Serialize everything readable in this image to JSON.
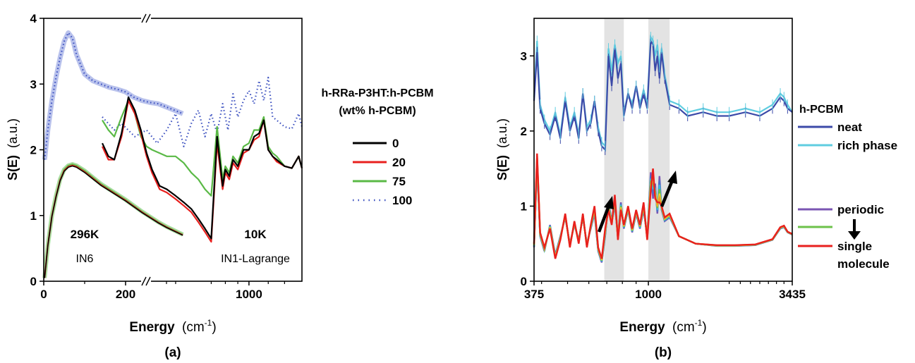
{
  "chart_data": [
    {
      "panel_label": "(a)",
      "type": "line",
      "ylabel_main": "S(E)",
      "ylabel_unit": "(a.u.)",
      "xlabel_main": "Energy",
      "xlabel_unit": "(cm",
      "xlabel_exp": "-1",
      "xlabel_close": ")",
      "ylim": [
        0,
        4
      ],
      "yticks": [
        "0",
        "1",
        "2",
        "3",
        "4"
      ],
      "xticks": [
        "0",
        "200",
        "1000"
      ],
      "x_segments": [
        {
          "name": "296K / IN6",
          "xlim": [
            0,
            350
          ],
          "scale": "linear"
        },
        {
          "name": "10K / IN1-Lagrange",
          "xlim": [
            250,
            1650
          ],
          "scale": "log"
        }
      ],
      "annotations": {
        "left_temp": "296K",
        "left_instr": "IN6",
        "right_temp": "10K",
        "right_instr": "IN1-Lagrange"
      },
      "legend": {
        "title1": "h-RRa-P3HT:h-PCBM",
        "title2": "(wt% h-PCBM)",
        "placement": "right",
        "entries": [
          {
            "label": "0",
            "color": "#000000",
            "style": "solid"
          },
          {
            "label": "20",
            "color": "#e8201e",
            "style": "solid"
          },
          {
            "label": "75",
            "color": "#5ab946",
            "style": "solid"
          },
          {
            "label": "100",
            "color": "#3a4fbf",
            "style": "dotted"
          }
        ]
      },
      "series_low_T": {
        "x": [
          2,
          10,
          20,
          30,
          40,
          50,
          60,
          70,
          80,
          100,
          120,
          140,
          160,
          180,
          200,
          220,
          240,
          260,
          280,
          300,
          320,
          340
        ],
        "y": [
          0.05,
          0.55,
          1.0,
          1.3,
          1.55,
          1.7,
          1.76,
          1.78,
          1.76,
          1.68,
          1.58,
          1.48,
          1.4,
          1.32,
          1.24,
          1.15,
          1.06,
          0.98,
          0.9,
          0.83,
          0.77,
          0.71
        ]
      },
      "series_100_low_T": {
        "x": [
          2,
          10,
          20,
          30,
          40,
          50,
          60,
          70,
          80,
          100,
          120,
          140,
          160,
          180,
          200,
          220,
          240,
          260,
          280,
          300,
          320,
          340
        ],
        "y": [
          1.85,
          2.3,
          2.75,
          3.1,
          3.4,
          3.65,
          3.78,
          3.7,
          3.45,
          3.15,
          3.05,
          3.0,
          2.95,
          2.92,
          2.88,
          2.8,
          2.75,
          2.72,
          2.7,
          2.65,
          2.6,
          2.55
        ]
      },
      "series_10K": [
        {
          "name": "0",
          "x": [
            250,
            265,
            280,
            300,
            320,
            340,
            360,
            380,
            400,
            430,
            460,
            500,
            540,
            580,
            620,
            660,
            700,
            740,
            780,
            800,
            830,
            860,
            900,
            950,
            1000,
            1050,
            1100,
            1150,
            1200,
            1250,
            1300,
            1400,
            1500,
            1600,
            1650
          ],
          "y": [
            2.1,
            1.9,
            1.85,
            2.25,
            2.8,
            2.6,
            2.3,
            1.95,
            1.7,
            1.45,
            1.4,
            1.3,
            1.2,
            1.1,
            0.95,
            0.8,
            0.65,
            2.2,
            1.45,
            1.7,
            1.6,
            1.85,
            1.75,
            2.0,
            2.0,
            2.2,
            2.25,
            2.45,
            2.0,
            1.9,
            1.85,
            1.75,
            1.72,
            1.9,
            1.72
          ]
        },
        {
          "name": "20",
          "x": [
            250,
            265,
            280,
            300,
            320,
            340,
            360,
            380,
            400,
            430,
            460,
            500,
            540,
            580,
            620,
            660,
            700,
            740,
            780,
            800,
            830,
            860,
            900,
            950,
            1000,
            1050,
            1100,
            1150,
            1200,
            1250,
            1300,
            1400,
            1500,
            1600,
            1650
          ],
          "y": [
            2.05,
            1.85,
            1.85,
            2.2,
            2.75,
            2.55,
            2.25,
            1.9,
            1.65,
            1.4,
            1.35,
            1.25,
            1.15,
            1.05,
            0.9,
            0.75,
            0.6,
            2.1,
            1.4,
            1.65,
            1.55,
            1.8,
            1.7,
            1.95,
            2.0,
            2.15,
            2.2,
            2.45,
            2.0,
            1.9,
            1.82,
            1.75,
            1.72,
            1.9,
            1.72
          ]
        },
        {
          "name": "75",
          "x": [
            250,
            265,
            280,
            300,
            320,
            340,
            360,
            380,
            400,
            430,
            460,
            500,
            540,
            580,
            620,
            660,
            700,
            740,
            780,
            800,
            830,
            860,
            900,
            950,
            1000,
            1050,
            1100,
            1150,
            1200,
            1250,
            1300,
            1400,
            1500,
            1600,
            1650
          ],
          "y": [
            2.45,
            2.3,
            2.2,
            2.5,
            2.75,
            2.55,
            2.2,
            2.05,
            2.0,
            1.95,
            1.9,
            1.9,
            1.8,
            1.65,
            1.55,
            1.4,
            1.3,
            2.35,
            1.55,
            1.75,
            1.65,
            1.9,
            1.8,
            2.05,
            2.1,
            2.3,
            2.3,
            2.5,
            2.05,
            1.95,
            1.9,
            1.75,
            1.72,
            1.9,
            1.72
          ]
        },
        {
          "name": "100",
          "x": [
            250,
            280,
            300,
            340,
            380,
            420,
            460,
            500,
            540,
            580,
            620,
            660,
            700,
            740,
            780,
            820,
            860,
            900,
            950,
            1000,
            1050,
            1100,
            1150,
            1200,
            1250,
            1300,
            1400,
            1500,
            1600,
            1650
          ],
          "y": [
            2.5,
            2.3,
            2.4,
            2.2,
            2.3,
            2.1,
            2.3,
            2.55,
            2.05,
            2.4,
            2.6,
            2.2,
            2.55,
            2.25,
            2.7,
            2.3,
            2.85,
            2.5,
            2.75,
            2.9,
            2.7,
            3.05,
            2.75,
            3.1,
            2.5,
            2.45,
            2.35,
            2.32,
            2.55,
            2.35
          ]
        }
      ]
    },
    {
      "panel_label": "(b)",
      "type": "line",
      "ylabel_main": "S(E)",
      "ylabel_unit": "(a.u.)",
      "xlabel_main": "Energy",
      "xlabel_unit": "(cm",
      "xlabel_exp": "-1",
      "xlabel_close": ")",
      "xscale": "log",
      "xlim": [
        375,
        3435
      ],
      "ylim": [
        0,
        3.5
      ],
      "yticks": [
        "0",
        "1",
        "2",
        "3"
      ],
      "xticks": [
        "375",
        "1000",
        "3435"
      ],
      "shaded_regions": [
        [
          685,
          810
        ],
        [
          1000,
          1200
        ]
      ],
      "legend": {
        "title1": "h-PCBM",
        "placement": "right",
        "entries": [
          {
            "label": "neat",
            "color": "#3c4aa8"
          },
          {
            "label": "rich phase",
            "color": "#5fcde0"
          },
          {
            "label": "periodic",
            "color": "#7b55b3"
          },
          {
            "label": "",
            "color": "#6cc24a"
          },
          {
            "label": "single",
            "color": "#e8201e"
          },
          {
            "label": "molecule",
            "color": ""
          }
        ]
      },
      "series": [
        {
          "name": "neat",
          "x": [
            375,
            385,
            395,
            410,
            430,
            450,
            470,
            490,
            510,
            530,
            550,
            570,
            590,
            610,
            630,
            650,
            670,
            690,
            710,
            730,
            750,
            770,
            790,
            810,
            840,
            870,
            900,
            930,
            960,
            990,
            1020,
            1040,
            1060,
            1080,
            1100,
            1120,
            1150,
            1200,
            1300,
            1400,
            1600,
            1800,
            2000,
            2300,
            2600,
            2900,
            3100,
            3200,
            3300,
            3435
          ],
          "y": [
            2.4,
            3.05,
            2.3,
            2.1,
            1.95,
            2.2,
            1.9,
            2.4,
            2.0,
            2.2,
            1.9,
            2.5,
            2.0,
            2.1,
            2.4,
            2.0,
            1.8,
            1.75,
            3.0,
            2.6,
            3.1,
            2.7,
            2.9,
            2.2,
            2.5,
            2.3,
            2.6,
            2.3,
            2.5,
            2.3,
            3.2,
            3.15,
            2.8,
            3.0,
            2.7,
            3.05,
            2.7,
            2.35,
            2.3,
            2.2,
            2.25,
            2.2,
            2.2,
            2.25,
            2.2,
            2.3,
            2.45,
            2.4,
            2.3,
            2.25
          ]
        },
        {
          "name": "rich phase",
          "x": [
            375,
            385,
            395,
            410,
            430,
            450,
            470,
            490,
            510,
            530,
            550,
            570,
            590,
            610,
            630,
            650,
            670,
            690,
            710,
            730,
            750,
            770,
            790,
            810,
            840,
            870,
            900,
            930,
            960,
            990,
            1020,
            1040,
            1060,
            1080,
            1100,
            1120,
            1150,
            1200,
            1300,
            1400,
            1600,
            1800,
            2000,
            2300,
            2600,
            2900,
            3100,
            3200,
            3300,
            3435
          ],
          "y": [
            2.45,
            3.2,
            2.35,
            2.15,
            2.0,
            2.25,
            1.95,
            2.45,
            2.05,
            2.25,
            1.95,
            2.5,
            2.05,
            2.15,
            2.4,
            2.05,
            1.85,
            1.8,
            3.1,
            2.8,
            3.15,
            2.9,
            3.0,
            2.25,
            2.5,
            2.35,
            2.6,
            2.35,
            2.55,
            2.35,
            3.25,
            3.2,
            3.0,
            3.15,
            2.85,
            3.1,
            2.75,
            2.4,
            2.35,
            2.25,
            2.3,
            2.25,
            2.25,
            2.3,
            2.25,
            2.35,
            2.5,
            2.45,
            2.35,
            2.25
          ]
        },
        {
          "name": "periodic",
          "x": [
            375,
            385,
            395,
            410,
            430,
            450,
            470,
            490,
            510,
            530,
            550,
            570,
            590,
            610,
            630,
            650,
            670,
            690,
            710,
            730,
            750,
            770,
            790,
            810,
            840,
            870,
            900,
            930,
            960,
            990,
            1020,
            1040,
            1060,
            1080,
            1100,
            1120,
            1150,
            1200,
            1300,
            1500,
            1800,
            2100,
            2500,
            2900,
            3100,
            3200,
            3300,
            3435
          ],
          "y": [
            0.45,
            1.55,
            0.6,
            0.4,
            0.75,
            0.35,
            0.6,
            0.85,
            0.5,
            0.75,
            0.55,
            0.85,
            0.5,
            0.7,
            0.9,
            0.4,
            0.25,
            0.6,
            1.05,
            0.8,
            1.0,
            0.6,
            1.05,
            0.7,
            0.95,
            0.65,
            0.9,
            0.7,
            0.95,
            0.6,
            1.45,
            1.1,
            1.3,
            0.9,
            1.4,
            0.95,
            0.8,
            0.85,
            0.6,
            0.5,
            0.47,
            0.47,
            0.48,
            0.55,
            0.7,
            0.72,
            0.65,
            0.62
          ]
        },
        {
          "name": "single molecule",
          "x": [
            375,
            385,
            395,
            410,
            430,
            450,
            470,
            490,
            510,
            530,
            550,
            570,
            590,
            610,
            630,
            650,
            670,
            690,
            710,
            730,
            750,
            770,
            790,
            810,
            840,
            870,
            900,
            930,
            960,
            990,
            1020,
            1040,
            1060,
            1080,
            1100,
            1120,
            1150,
            1200,
            1300,
            1500,
            1800,
            2100,
            2500,
            2900,
            3100,
            3200,
            3300,
            3435
          ],
          "y": [
            0.5,
            1.7,
            0.65,
            0.45,
            0.7,
            0.3,
            0.55,
            0.9,
            0.45,
            0.8,
            0.5,
            0.9,
            0.45,
            0.75,
            1.0,
            0.45,
            0.3,
            0.7,
            0.95,
            0.75,
            1.15,
            0.55,
            0.95,
            0.75,
            1.0,
            0.7,
            0.95,
            0.75,
            1.05,
            0.55,
            1.2,
            1.5,
            1.1,
            1.05,
            1.05,
            1.0,
            0.85,
            0.9,
            0.6,
            0.5,
            0.48,
            0.48,
            0.49,
            0.56,
            0.72,
            0.74,
            0.66,
            0.63
          ]
        }
      ]
    }
  ]
}
